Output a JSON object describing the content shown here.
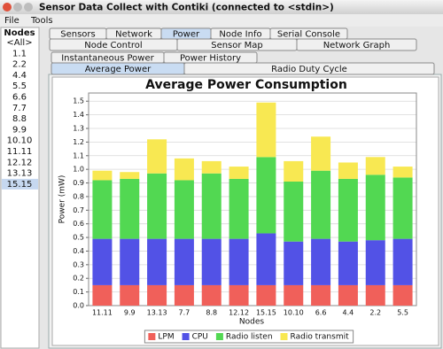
{
  "window": {
    "title": "Sensor Data Collect with Contiki (connected to <stdin>)"
  },
  "menu": [
    "File",
    "Tools"
  ],
  "nodes": {
    "header": "Nodes",
    "items": [
      "<All>",
      "1.1",
      "2.2",
      "4.4",
      "5.5",
      "6.6",
      "7.7",
      "8.8",
      "9.9",
      "10.10",
      "11.11",
      "12.12",
      "13.13",
      "15.15"
    ]
  },
  "tabs": {
    "row1": [
      "Sensors",
      "Network",
      "Power",
      "Node Info",
      "Serial Console"
    ],
    "row2": [
      "Node Control",
      "Sensor Map",
      "Network Graph"
    ]
  },
  "subtabs": {
    "row1": [
      "Instantaneous Power",
      "Power History"
    ],
    "row2": [
      "Average Power",
      "Radio Duty Cycle"
    ]
  },
  "chart_data": {
    "type": "stacked-bar",
    "title": "Average Power Consumption",
    "x_label": "Nodes",
    "y_label": "Power (mW)",
    "categories": [
      "11.11",
      "9.9",
      "13.13",
      "7.7",
      "8.8",
      "12.12",
      "15.15",
      "10.10",
      "6.6",
      "4.4",
      "2.2",
      "5.5"
    ],
    "series": [
      {
        "name": "LPM",
        "color": "#f0605a",
        "values": [
          0.15,
          0.15,
          0.15,
          0.15,
          0.15,
          0.15,
          0.15,
          0.15,
          0.15,
          0.15,
          0.15,
          0.15
        ]
      },
      {
        "name": "CPU",
        "color": "#5252e6",
        "values": [
          0.34,
          0.34,
          0.34,
          0.34,
          0.34,
          0.34,
          0.38,
          0.32,
          0.34,
          0.32,
          0.33,
          0.34
        ]
      },
      {
        "name": "Radio listen",
        "color": "#52d852",
        "values": [
          0.43,
          0.44,
          0.48,
          0.43,
          0.48,
          0.44,
          0.56,
          0.44,
          0.5,
          0.46,
          0.48,
          0.45
        ]
      },
      {
        "name": "Radio transmit",
        "color": "#f8e852",
        "values": [
          0.07,
          0.05,
          0.25,
          0.16,
          0.09,
          0.09,
          0.4,
          0.15,
          0.25,
          0.12,
          0.13,
          0.08
        ]
      }
    ],
    "ylim": [
      0,
      1.56
    ],
    "yticks": [
      {
        "value": 0,
        "label": "0.0"
      },
      0.1,
      0.2,
      0.3,
      0.4,
      0.5,
      0.6,
      0.7,
      0.8,
      0.9,
      {
        "value": 1,
        "label": "1.0"
      },
      1.1,
      1.2,
      1.3,
      1.4,
      1.5
    ],
    "grid": true,
    "legend": "bottom"
  }
}
